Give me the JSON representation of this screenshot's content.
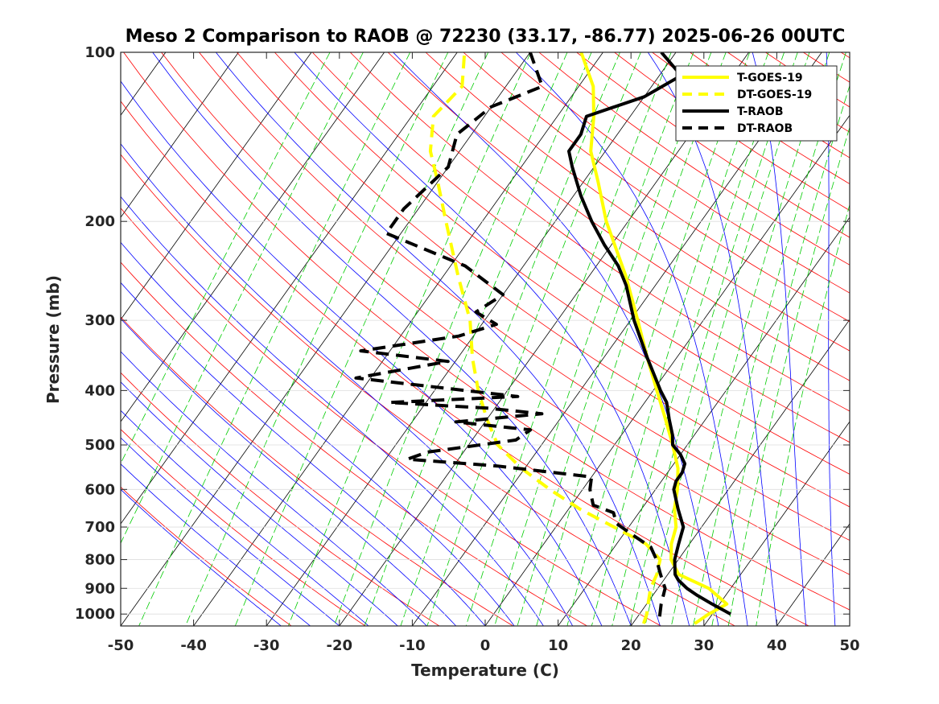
{
  "chart_data": {
    "type": "line",
    "title": "Meso 2 Comparison to RAOB @ 72230 (33.17, -86.77) 2025-06-26 00UTC",
    "xlabel": "Temperature (C)",
    "ylabel": "Pressure (mb)",
    "xlim": [
      -50,
      50
    ],
    "ylim": [
      100,
      1050
    ],
    "y_scale": "log",
    "y_reversed": true,
    "skew_c_per_decade": 55,
    "x_ticks": [
      -50,
      -40,
      -30,
      -20,
      -10,
      0,
      10,
      20,
      30,
      40,
      50
    ],
    "x_tick_labels": [
      "-50",
      "-40",
      "-30",
      "-20",
      "-10",
      "0",
      "10",
      "20",
      "30",
      "40",
      "50"
    ],
    "y_ticks": [
      100,
      200,
      300,
      400,
      500,
      600,
      700,
      800,
      900,
      1000
    ],
    "y_tick_labels": [
      "100",
      "200",
      "300",
      "400",
      "500",
      "600",
      "700",
      "800",
      "900",
      "1000"
    ],
    "legend_position": "top-right",
    "background_lines": {
      "isotherms_color": "#000000",
      "dry_adiabats_color": "#ff0000",
      "moist_adiabats_color": "#0000ff",
      "mixing_ratio_color": "#00cc00"
    },
    "series": [
      {
        "name": "T-GOES-19",
        "color": "#ffff00",
        "style": "solid",
        "points": [
          {
            "p": 1040,
            "t": 28.5
          },
          {
            "p": 1000,
            "t": 29.5
          },
          {
            "p": 960,
            "t": 31
          },
          {
            "p": 900,
            "t": 27
          },
          {
            "p": 850,
            "t": 21.5
          },
          {
            "p": 800,
            "t": 19
          },
          {
            "p": 750,
            "t": 17.5
          },
          {
            "p": 700,
            "t": 16.5
          },
          {
            "p": 650,
            "t": 14.5
          },
          {
            "p": 600,
            "t": 13
          },
          {
            "p": 550,
            "t": 11
          },
          {
            "p": 500,
            "t": 8
          },
          {
            "p": 450,
            "t": 4.5
          },
          {
            "p": 400,
            "t": 0.5
          },
          {
            "p": 350,
            "t": -4
          },
          {
            "p": 300,
            "t": -9
          },
          {
            "p": 250,
            "t": -15
          },
          {
            "p": 200,
            "t": -23
          },
          {
            "p": 170,
            "t": -28
          },
          {
            "p": 150,
            "t": -32
          },
          {
            "p": 130,
            "t": -35
          },
          {
            "p": 115,
            "t": -38
          },
          {
            "p": 100,
            "t": -43
          }
        ]
      },
      {
        "name": "DT-GOES-19",
        "color": "#ffff00",
        "style": "dashed",
        "points": [
          {
            "p": 1040,
            "t": 21.5
          },
          {
            "p": 1000,
            "t": 21
          },
          {
            "p": 950,
            "t": 20
          },
          {
            "p": 900,
            "t": 19
          },
          {
            "p": 850,
            "t": 18.5
          },
          {
            "p": 800,
            "t": 17.5
          },
          {
            "p": 750,
            "t": 14
          },
          {
            "p": 700,
            "t": 8
          },
          {
            "p": 650,
            "t": 1.5
          },
          {
            "p": 600,
            "t": -4.5
          },
          {
            "p": 550,
            "t": -10.5
          },
          {
            "p": 500,
            "t": -16
          },
          {
            "p": 450,
            "t": -20
          },
          {
            "p": 400,
            "t": -24
          },
          {
            "p": 350,
            "t": -28
          },
          {
            "p": 300,
            "t": -32
          },
          {
            "p": 250,
            "t": -38
          },
          {
            "p": 200,
            "t": -45
          },
          {
            "p": 170,
            "t": -50
          },
          {
            "p": 150,
            "t": -54
          },
          {
            "p": 130,
            "t": -57
          },
          {
            "p": 115,
            "t": -56
          },
          {
            "p": 100,
            "t": -59
          }
        ]
      },
      {
        "name": "T-RAOB",
        "color": "#000000",
        "style": "solid",
        "points": [
          {
            "p": 1000,
            "t": 32.5
          },
          {
            "p": 960,
            "t": 29
          },
          {
            "p": 925,
            "t": 26
          },
          {
            "p": 900,
            "t": 24
          },
          {
            "p": 870,
            "t": 22
          },
          {
            "p": 850,
            "t": 21
          },
          {
            "p": 800,
            "t": 19.5
          },
          {
            "p": 750,
            "t": 18.5
          },
          {
            "p": 700,
            "t": 17.5
          },
          {
            "p": 650,
            "t": 15
          },
          {
            "p": 600,
            "t": 12.5
          },
          {
            "p": 580,
            "t": 12
          },
          {
            "p": 560,
            "t": 12
          },
          {
            "p": 540,
            "t": 11.5
          },
          {
            "p": 520,
            "t": 10
          },
          {
            "p": 500,
            "t": 8
          },
          {
            "p": 480,
            "t": 7
          },
          {
            "p": 450,
            "t": 5
          },
          {
            "p": 420,
            "t": 3
          },
          {
            "p": 400,
            "t": 1
          },
          {
            "p": 350,
            "t": -4
          },
          {
            "p": 300,
            "t": -9.5
          },
          {
            "p": 260,
            "t": -14
          },
          {
            "p": 240,
            "t": -17
          },
          {
            "p": 220,
            "t": -21
          },
          {
            "p": 200,
            "t": -25
          },
          {
            "p": 180,
            "t": -29
          },
          {
            "p": 160,
            "t": -33
          },
          {
            "p": 150,
            "t": -35
          },
          {
            "p": 140,
            "t": -35
          },
          {
            "p": 130,
            "t": -36
          },
          {
            "p": 120,
            "t": -30
          },
          {
            "p": 110,
            "t": -27
          },
          {
            "p": 100,
            "t": -32
          }
        ]
      },
      {
        "name": "DT-RAOB",
        "color": "#000000",
        "style": "dashed",
        "points": [
          {
            "p": 1010,
            "t": 23
          },
          {
            "p": 960,
            "t": 22
          },
          {
            "p": 900,
            "t": 21
          },
          {
            "p": 850,
            "t": 19
          },
          {
            "p": 800,
            "t": 17
          },
          {
            "p": 760,
            "t": 15
          },
          {
            "p": 720,
            "t": 11
          },
          {
            "p": 690,
            "t": 8
          },
          {
            "p": 660,
            "t": 6.5
          },
          {
            "p": 640,
            "t": 3
          },
          {
            "p": 600,
            "t": 1
          },
          {
            "p": 570,
            "t": 0
          },
          {
            "p": 545,
            "t": -14
          },
          {
            "p": 530,
            "t": -27
          },
          {
            "p": 515,
            "t": -25
          },
          {
            "p": 490,
            "t": -14
          },
          {
            "p": 470,
            "t": -13
          },
          {
            "p": 455,
            "t": -24
          },
          {
            "p": 440,
            "t": -13
          },
          {
            "p": 430,
            "t": -21
          },
          {
            "p": 420,
            "t": -35
          },
          {
            "p": 410,
            "t": -18
          },
          {
            "p": 380,
            "t": -42
          },
          {
            "p": 355,
            "t": -31
          },
          {
            "p": 340,
            "t": -44
          },
          {
            "p": 320,
            "t": -32
          },
          {
            "p": 305,
            "t": -28
          },
          {
            "p": 290,
            "t": -32
          },
          {
            "p": 270,
            "t": -30
          },
          {
            "p": 240,
            "t": -38
          },
          {
            "p": 210,
            "t": -52
          },
          {
            "p": 190,
            "t": -52
          },
          {
            "p": 160,
            "t": -50
          },
          {
            "p": 140,
            "t": -52
          },
          {
            "p": 125,
            "t": -50
          },
          {
            "p": 115,
            "t": -45
          },
          {
            "p": 100,
            "t": -50
          }
        ]
      }
    ]
  }
}
